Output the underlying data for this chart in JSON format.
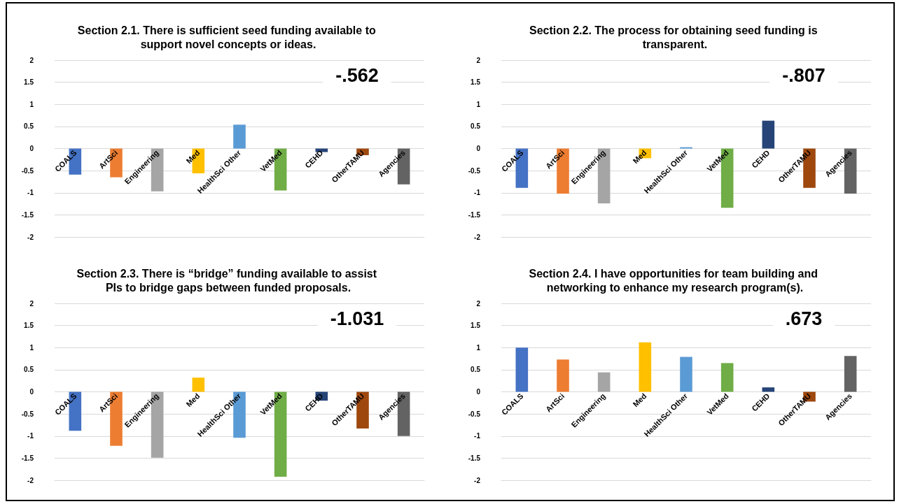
{
  "chart_data": [
    {
      "type": "bar",
      "title": "Section 2.1. There is sufficient seed funding available to support novel concepts or ideas.",
      "categories": [
        "COALS",
        "ArtSci",
        "Engineering",
        "Med",
        "HealthSci Other",
        "VetMed",
        "CEHD",
        "OtherTAMU",
        "Agencies"
      ],
      "values": [
        -0.59,
        -0.65,
        -0.97,
        -0.56,
        0.54,
        -0.95,
        -0.08,
        -0.15,
        -0.81
      ],
      "colors": [
        "#4472c4",
        "#ed7d31",
        "#a5a5a5",
        "#ffc000",
        "#5b9bd5",
        "#70ad47",
        "#264478",
        "#9e480e",
        "#636363"
      ],
      "ylim": [
        -2,
        2
      ],
      "yticks": [
        -2,
        -1.5,
        -1,
        -0.5,
        0,
        0.5,
        1,
        1.5,
        2
      ],
      "grid": "y",
      "annotations": [
        "-.562"
      ]
    },
    {
      "type": "bar",
      "title": "Section 2.2. The process for obtaining seed funding is transparent.",
      "categories": [
        "COALS",
        "ArtSci",
        "Engineering",
        "Med",
        "HealthSci Other",
        "VetMed",
        "CEHD",
        "OtherTAMU",
        "Agencies"
      ],
      "values": [
        -0.89,
        -1.02,
        -1.24,
        -0.22,
        0.03,
        -1.34,
        0.63,
        -0.89,
        -1.02
      ],
      "colors": [
        "#4472c4",
        "#ed7d31",
        "#a5a5a5",
        "#ffc000",
        "#5b9bd5",
        "#70ad47",
        "#264478",
        "#9e480e",
        "#636363"
      ],
      "ylim": [
        -2,
        2
      ],
      "yticks": [
        -2,
        -1.5,
        -1,
        -0.5,
        0,
        0.5,
        1,
        1.5,
        2
      ],
      "grid": "y",
      "annotations": [
        "-.807"
      ]
    },
    {
      "type": "bar",
      "title": "Section 2.3. There is “bridge” funding available to assist PIs to bridge gaps between funded proposals.",
      "categories": [
        "COALS",
        "ArtSci",
        "Engineering",
        "Med",
        "HealthSci Other",
        "VetMed",
        "CEHD",
        "OtherTAMU",
        "Agencies"
      ],
      "values": [
        -0.88,
        -1.22,
        -1.49,
        0.32,
        -1.04,
        -1.92,
        -0.2,
        -0.83,
        -1.0
      ],
      "colors": [
        "#4472c4",
        "#ed7d31",
        "#a5a5a5",
        "#ffc000",
        "#5b9bd5",
        "#70ad47",
        "#264478",
        "#9e480e",
        "#636363"
      ],
      "ylim": [
        -2,
        2
      ],
      "yticks": [
        -2,
        -1.5,
        -1,
        -0.5,
        0,
        0.5,
        1,
        1.5,
        2
      ],
      "grid": "y",
      "annotations": [
        "-1.031"
      ]
    },
    {
      "type": "bar",
      "title": "Section 2.4. I have opportunities for team building and networking to enhance my research program(s).",
      "categories": [
        "COALS",
        "ArtSci",
        "Engineering",
        "Med",
        "HealthSci Other",
        "VetMed",
        "CEHD",
        "OtherTAMU",
        "Agencies"
      ],
      "values": [
        1.0,
        0.73,
        0.44,
        1.12,
        0.79,
        0.65,
        0.1,
        -0.22,
        0.81
      ],
      "colors": [
        "#4472c4",
        "#ed7d31",
        "#a5a5a5",
        "#ffc000",
        "#5b9bd5",
        "#70ad47",
        "#264478",
        "#9e480e",
        "#636363"
      ],
      "ylim": [
        -2,
        2
      ],
      "yticks": [
        -2,
        -1.5,
        -1,
        -0.5,
        0,
        0.5,
        1,
        1.5,
        2
      ],
      "grid": "y",
      "annotations": [
        ".673"
      ]
    }
  ]
}
